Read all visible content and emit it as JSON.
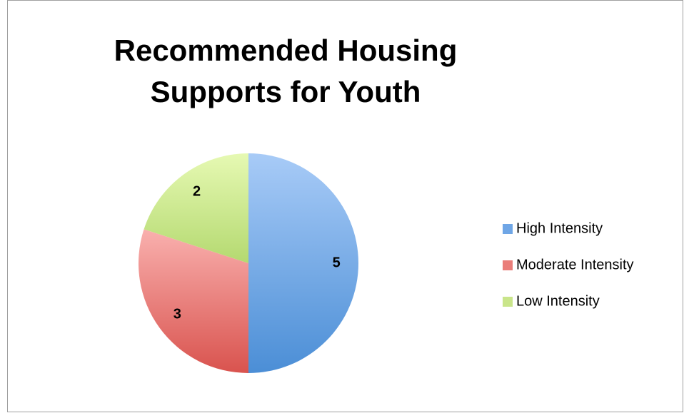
{
  "chart_data": {
    "type": "pie",
    "title": "Recommended Housing Supports for Youth",
    "categories": [
      "High Intensity",
      "Moderate Intensity",
      "Low Intensity"
    ],
    "values": [
      5,
      3,
      2
    ],
    "colors": [
      "#6fa6e6",
      "#ea7d79",
      "#c9e58a"
    ],
    "legend": "right"
  }
}
